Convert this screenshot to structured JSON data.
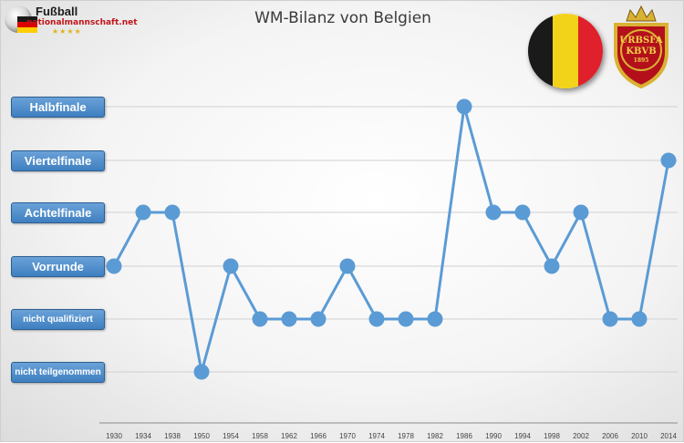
{
  "title": "WM-Bilanz von Belgien",
  "logo": {
    "brand": "Fußball",
    "site": "nationalmannschaft.net",
    "stars": "★★★★"
  },
  "crest_text": {
    "line1": "URBSFA",
    "line2": "KBVB",
    "year": "1895"
  },
  "colors": {
    "line": "#5b9bd5",
    "label_bg": "#4a88c7",
    "flag_belgium": [
      "#1a1a1a",
      "#f3d21a",
      "#e0202a"
    ],
    "flag_germany": [
      "#1a1a1a",
      "#dd0000",
      "#ffce00"
    ],
    "crest_red": "#b3101b",
    "crest_gold": "#d9b233"
  },
  "chart_data": {
    "type": "line",
    "title": "WM-Bilanz von Belgien",
    "categories": [
      "1930",
      "1934",
      "1938",
      "1950",
      "1954",
      "1958",
      "1962",
      "1966",
      "1970",
      "1974",
      "1978",
      "1982",
      "1986",
      "1990",
      "1994",
      "1998",
      "2002",
      "2006",
      "2010",
      "2014"
    ],
    "levels": [
      "nicht teilgenommen",
      "nicht qualifiziert",
      "Vorrunde",
      "Achtelfinale",
      "Viertelfinale",
      "Halbfinale"
    ],
    "series": [
      {
        "values": [
          "Vorrunde",
          "Achtelfinale",
          "Achtelfinale",
          "nicht teilgenommen",
          "Vorrunde",
          "nicht qualifiziert",
          "nicht qualifiziert",
          "nicht qualifiziert",
          "Vorrunde",
          "nicht qualifiziert",
          "nicht qualifiziert",
          "nicht qualifiziert",
          "Halbfinale",
          "Achtelfinale",
          "Achtelfinale",
          "Vorrunde",
          "Achtelfinale",
          "nicht qualifiziert",
          "nicht qualifiziert",
          "Viertelfinale"
        ]
      }
    ],
    "grid": true,
    "legend": "none"
  }
}
